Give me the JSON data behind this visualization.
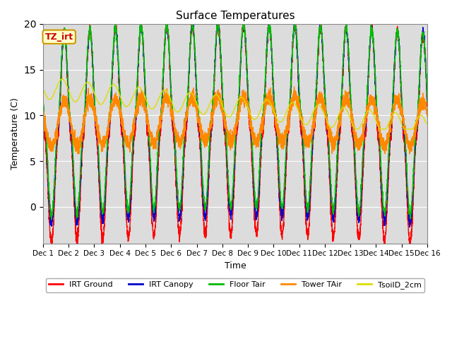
{
  "title": "Surface Temperatures",
  "xlabel": "Time",
  "ylabel": "Temperature (C)",
  "ylim": [
    -4,
    20
  ],
  "background_color": "#dcdcdc",
  "plot_bg_color": "#dcdcdc",
  "fig_bg_color": "#ffffff",
  "annotation_text": "TZ_irt",
  "annotation_bg": "#ffffcc",
  "annotation_border": "#cc9900",
  "annotation_text_color": "#cc0000",
  "series": [
    {
      "name": "IRT Ground",
      "color": "#ff0000"
    },
    {
      "name": "IRT Canopy",
      "color": "#0000cc"
    },
    {
      "name": "Floor Tair",
      "color": "#00bb00"
    },
    {
      "name": "Tower TAir",
      "color": "#ff8800"
    },
    {
      "name": "TsoilD_2cm",
      "color": "#dddd00"
    }
  ],
  "n_days": 15,
  "pts_per_day": 288,
  "tick_labels": [
    "Dec 1",
    "Dec 2",
    "Dec 3",
    "Dec 4",
    "Dec 5",
    "Dec 6",
    "Dec 7",
    "Dec 8",
    "Dec 9",
    "Dec 10",
    "Dec 11",
    "Dec 12",
    "Dec 13",
    "Dec 14",
    "Dec 15",
    "Dec 16"
  ],
  "legend_ncol": 5
}
